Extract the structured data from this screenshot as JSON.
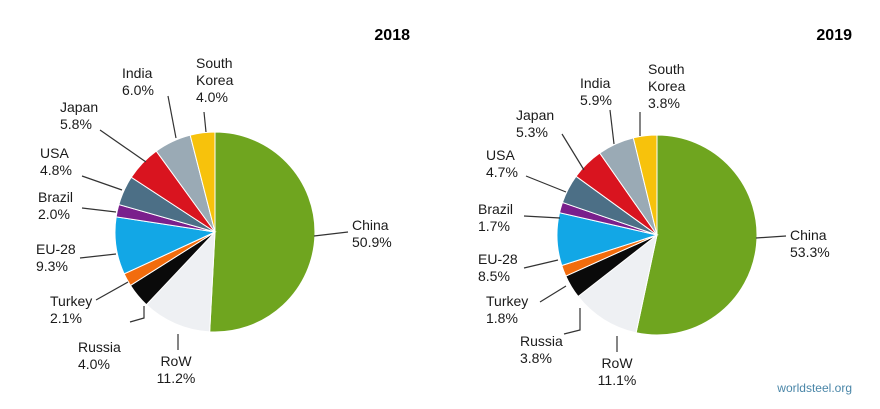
{
  "chart_data": [
    {
      "type": "pie",
      "title": "2018",
      "slices": [
        {
          "label": "China",
          "value": 50.9,
          "value_text": "50.9%",
          "color": "#6fa51f"
        },
        {
          "label": "RoW",
          "value": 11.2,
          "value_text": "11.2%",
          "color": "#eef0f3"
        },
        {
          "label": "Russia",
          "value": 4.0,
          "value_text": "4.0%",
          "color": "#0a0a0a"
        },
        {
          "label": "Turkey",
          "value": 2.1,
          "value_text": "2.1%",
          "color": "#f26c0d"
        },
        {
          "label": "EU-28",
          "value": 9.3,
          "value_text": "9.3%",
          "color": "#12a7e6"
        },
        {
          "label": "Brazil",
          "value": 2.0,
          "value_text": "2.0%",
          "color": "#7a1f8c"
        },
        {
          "label": "USA",
          "value": 4.8,
          "value_text": "4.8%",
          "color": "#4c6f86"
        },
        {
          "label": "Japan",
          "value": 5.8,
          "value_text": "5.8%",
          "color": "#d9141f"
        },
        {
          "label": "India",
          "value": 6.0,
          "value_text": "6.0%",
          "color": "#9aaab5"
        },
        {
          "label": "South Korea",
          "value": 4.0,
          "value_text": "4.0%",
          "color": "#f7c20c"
        }
      ]
    },
    {
      "type": "pie",
      "title": "2019",
      "slices": [
        {
          "label": "China",
          "value": 53.3,
          "value_text": "53.3%",
          "color": "#6fa51f"
        },
        {
          "label": "RoW",
          "value": 11.1,
          "value_text": "11.1%",
          "color": "#eef0f3"
        },
        {
          "label": "Russia",
          "value": 3.8,
          "value_text": "3.8%",
          "color": "#0a0a0a"
        },
        {
          "label": "Turkey",
          "value": 1.8,
          "value_text": "1.8%",
          "color": "#f26c0d"
        },
        {
          "label": "EU-28",
          "value": 8.5,
          "value_text": "8.5%",
          "color": "#12a7e6"
        },
        {
          "label": "Brazil",
          "value": 1.7,
          "value_text": "1.7%",
          "color": "#7a1f8c"
        },
        {
          "label": "USA",
          "value": 4.7,
          "value_text": "4.7%",
          "color": "#4c6f86"
        },
        {
          "label": "Japan",
          "value": 5.3,
          "value_text": "5.3%",
          "color": "#d9141f"
        },
        {
          "label": "India",
          "value": 5.9,
          "value_text": "5.9%",
          "color": "#9aaab5"
        },
        {
          "label": "South Korea",
          "value": 3.8,
          "value_text": "3.8%",
          "color": "#f7c20c"
        }
      ]
    }
  ],
  "source": "worldsteel.org"
}
